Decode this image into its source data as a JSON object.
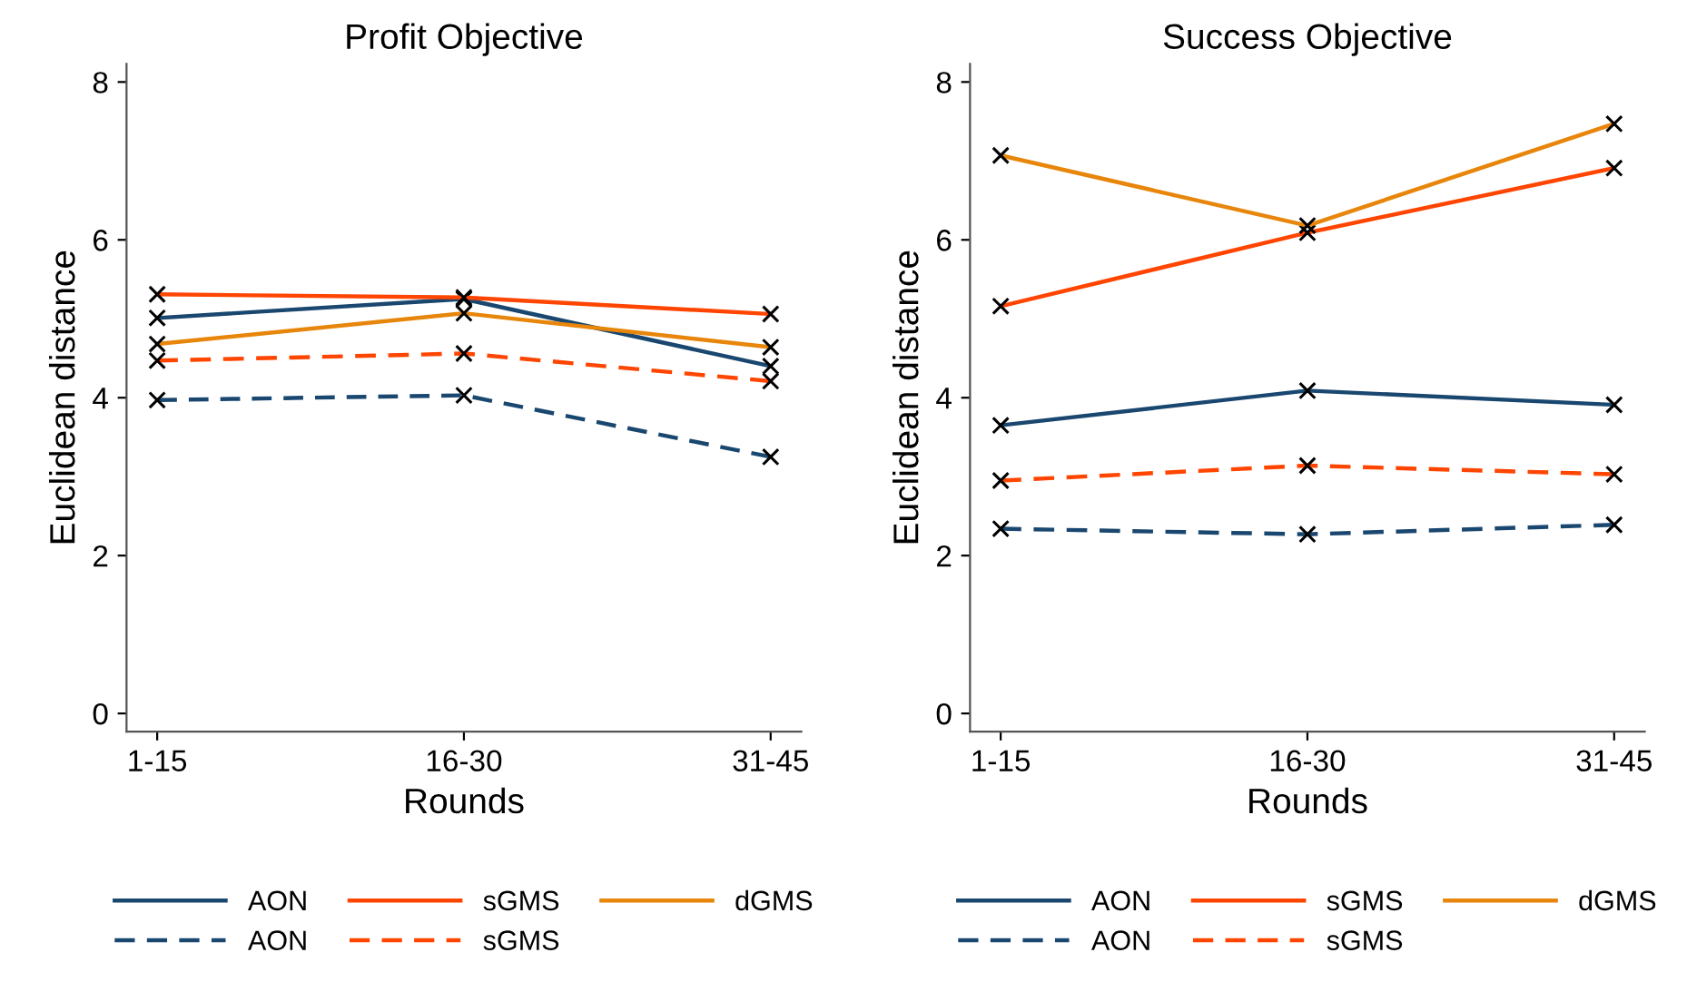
{
  "chart_data": [
    {
      "type": "line",
      "title": "Profit Objective",
      "xlabel": "Rounds",
      "ylabel": "Euclidean distance",
      "categories": [
        "1-15",
        "16-30",
        "31-45"
      ],
      "ylim": [
        -0.23,
        8.23
      ],
      "yticks": [
        0,
        2,
        4,
        6,
        8
      ],
      "grid": false,
      "legend": "bottom",
      "marker": "cross",
      "series": [
        {
          "name": "AON",
          "color": "#1a476f",
          "line_style": "solid",
          "values": [
            5.01,
            5.25,
            4.4
          ]
        },
        {
          "name": "sGMS",
          "color": "#ff4500",
          "line_style": "solid",
          "values": [
            5.31,
            5.27,
            5.06
          ]
        },
        {
          "name": "dGMS",
          "color": "#e8860b",
          "line_style": "solid",
          "values": [
            4.68,
            5.07,
            4.64
          ]
        },
        {
          "name": "AON",
          "color": "#1a476f",
          "line_style": "dashed",
          "values": [
            3.97,
            4.03,
            3.25
          ]
        },
        {
          "name": "sGMS",
          "color": "#ff4500",
          "line_style": "dashed",
          "values": [
            4.47,
            4.56,
            4.21
          ]
        }
      ]
    },
    {
      "type": "line",
      "title": "Success Objective",
      "xlabel": "Rounds",
      "ylabel": "Euclidean distance",
      "categories": [
        "1-15",
        "16-30",
        "31-45"
      ],
      "ylim": [
        -0.23,
        8.23
      ],
      "yticks": [
        0,
        2,
        4,
        6,
        8
      ],
      "grid": false,
      "legend": "bottom",
      "marker": "cross",
      "series": [
        {
          "name": "AON",
          "color": "#1a476f",
          "line_style": "solid",
          "values": [
            3.65,
            4.09,
            3.91
          ]
        },
        {
          "name": "sGMS",
          "color": "#ff4500",
          "line_style": "solid",
          "values": [
            5.16,
            6.09,
            6.91
          ]
        },
        {
          "name": "dGMS",
          "color": "#e8860b",
          "line_style": "solid",
          "values": [
            7.07,
            6.18,
            7.47
          ]
        },
        {
          "name": "AON",
          "color": "#1a476f",
          "line_style": "dashed",
          "values": [
            2.34,
            2.27,
            2.39
          ]
        },
        {
          "name": "sGMS",
          "color": "#ff4500",
          "line_style": "dashed",
          "values": [
            2.95,
            3.14,
            3.03
          ]
        }
      ]
    }
  ]
}
